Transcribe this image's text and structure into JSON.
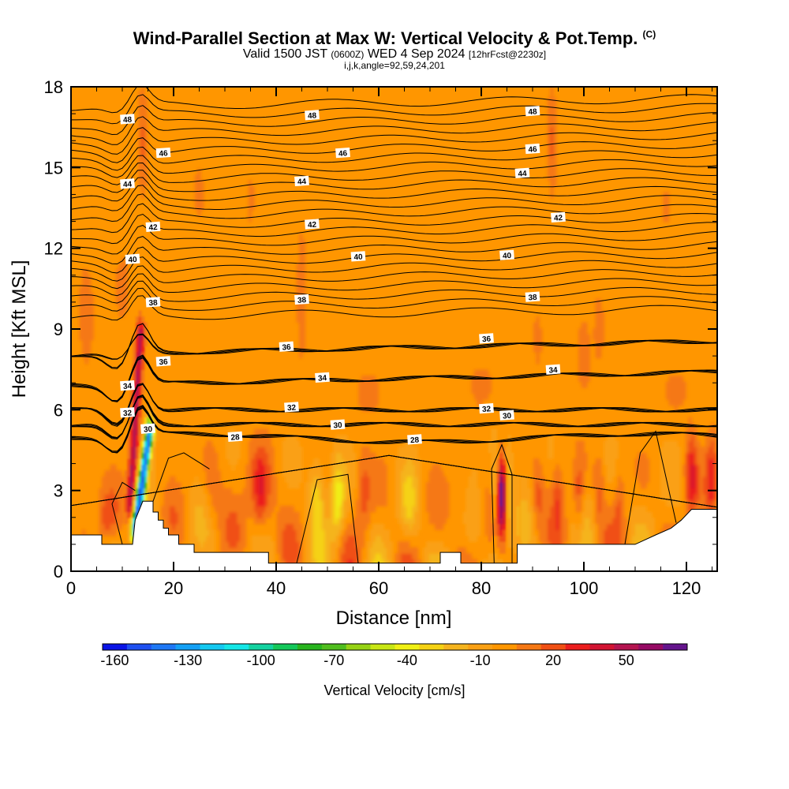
{
  "header": {
    "title": "Wind-Parallel Section at Max W: Vertical Velocity & Pot.Temp.",
    "copyright": "(C)",
    "subtitle_main": "Valid 1500 JST",
    "subtitle_utc": "(0600Z)",
    "subtitle_date": "WED 4 Sep 2024",
    "subtitle_fcst": "[12hrFcst@2230z]",
    "indices": "i,j,k,angle=92,59,24,201"
  },
  "chart_data": {
    "type": "heatmap",
    "xlabel": "Distance [nm]",
    "ylabel": "Height [Kft MSL]",
    "xlim": [
      0,
      126
    ],
    "ylim": [
      0,
      18
    ],
    "x_ticks": [
      0,
      20,
      40,
      60,
      80,
      100,
      120
    ],
    "y_ticks": [
      0,
      3,
      6,
      9,
      12,
      15,
      18
    ],
    "background_value_cm_s": -7,
    "colorbar": {
      "label": "Vertical Velocity [cm/s]",
      "tick_labels": [
        "-160",
        "-130",
        "-100",
        "-70",
        "-40",
        "-10",
        "20",
        "50"
      ],
      "tick_values": [
        -160,
        -130,
        -100,
        -70,
        -40,
        -10,
        20,
        50
      ],
      "levels": [
        -160,
        -150,
        -140,
        -130,
        -120,
        -110,
        -100,
        -90,
        -80,
        -70,
        -60,
        -50,
        -40,
        -30,
        -20,
        -10,
        0,
        10,
        20,
        30,
        40,
        50,
        60
      ],
      "colors": [
        "#0a14e6",
        "#1e50f0",
        "#1e78f5",
        "#14a0f5",
        "#14c8f0",
        "#14e6e6",
        "#14d2a0",
        "#14c85a",
        "#28b41e",
        "#50be1e",
        "#96d214",
        "#c8e614",
        "#f0f014",
        "#f5d214",
        "#f5b41e",
        "#faa014",
        "#ff9600",
        "#f57814",
        "#f05014",
        "#eb1e1e",
        "#d21432",
        "#b41450",
        "#960a64",
        "#64148c"
      ]
    },
    "terrain_kft": [
      [
        0,
        1.35
      ],
      [
        6,
        1.35
      ],
      [
        6,
        1.0
      ],
      [
        12,
        1.0
      ],
      [
        12.5,
        1.9
      ],
      [
        14,
        2.6
      ],
      [
        16,
        2.6
      ],
      [
        16,
        2.2
      ],
      [
        17,
        2.2
      ],
      [
        17,
        1.9
      ],
      [
        18,
        1.9
      ],
      [
        18,
        1.6
      ],
      [
        19,
        1.6
      ],
      [
        19,
        1.35
      ],
      [
        21,
        1.35
      ],
      [
        21,
        1.0
      ],
      [
        24,
        1.0
      ],
      [
        24,
        0.7
      ],
      [
        38.5,
        0.7
      ],
      [
        38.5,
        0.3
      ],
      [
        72,
        0.3
      ],
      [
        72,
        0.7
      ],
      [
        76,
        0.7
      ],
      [
        76,
        0.3
      ],
      [
        87,
        0.3
      ],
      [
        87,
        1.0
      ],
      [
        110,
        1.0
      ],
      [
        114,
        1.35
      ],
      [
        117,
        1.6
      ],
      [
        119,
        1.9
      ],
      [
        121,
        2.3
      ],
      [
        126,
        2.3
      ]
    ],
    "theta_contours": [
      {
        "value": 28,
        "label_at": [
          [
            32,
            5.0
          ],
          [
            67,
            4.9
          ]
        ]
      },
      {
        "value": 30,
        "label_at": [
          [
            15,
            5.3
          ],
          [
            52,
            5.45
          ],
          [
            85,
            5.8
          ]
        ]
      },
      {
        "value": 32,
        "label_at": [
          [
            11,
            5.9
          ],
          [
            43,
            6.1
          ],
          [
            81,
            6.05
          ]
        ]
      },
      {
        "value": 34,
        "label_at": [
          [
            11,
            6.9
          ],
          [
            49,
            7.2
          ],
          [
            94,
            7.5
          ]
        ]
      },
      {
        "value": 36,
        "label_at": [
          [
            18,
            7.8
          ],
          [
            42,
            8.35
          ],
          [
            81,
            8.65
          ]
        ]
      },
      {
        "value": 38,
        "label_at": [
          [
            16,
            10.0
          ],
          [
            45,
            10.1
          ],
          [
            90,
            10.2
          ]
        ]
      },
      {
        "value": 40,
        "label_at": [
          [
            12,
            11.6
          ],
          [
            56,
            11.7
          ],
          [
            85,
            11.75
          ]
        ]
      },
      {
        "value": 42,
        "label_at": [
          [
            16,
            12.8
          ],
          [
            47,
            12.9
          ],
          [
            95,
            13.15
          ]
        ]
      },
      {
        "value": 44,
        "label_at": [
          [
            11,
            14.4
          ],
          [
            45,
            14.5
          ],
          [
            88,
            14.8
          ]
        ]
      },
      {
        "value": 46,
        "label_at": [
          [
            18,
            15.55
          ],
          [
            53,
            15.55
          ],
          [
            90,
            15.7
          ]
        ]
      },
      {
        "value": 48,
        "label_at": [
          [
            11,
            16.8
          ],
          [
            47,
            16.95
          ],
          [
            90,
            17.1
          ]
        ]
      }
    ],
    "features": [
      {
        "kind": "updraft_band",
        "from": [
          11.6,
          2.5
        ],
        "to": [
          13.6,
          8.8
        ],
        "peak_cm_s": 45
      },
      {
        "kind": "downdraft_jet",
        "from": [
          12.6,
          1.6
        ],
        "to": [
          15.3,
          5.1
        ],
        "peak_cm_s": -145
      },
      {
        "kind": "updraft_column",
        "x": 84,
        "y": 2.9,
        "peak_cm_s": 60
      },
      {
        "kind": "downdraft_column",
        "x": 52,
        "y": 2.6,
        "peak_cm_s": -45
      }
    ]
  }
}
